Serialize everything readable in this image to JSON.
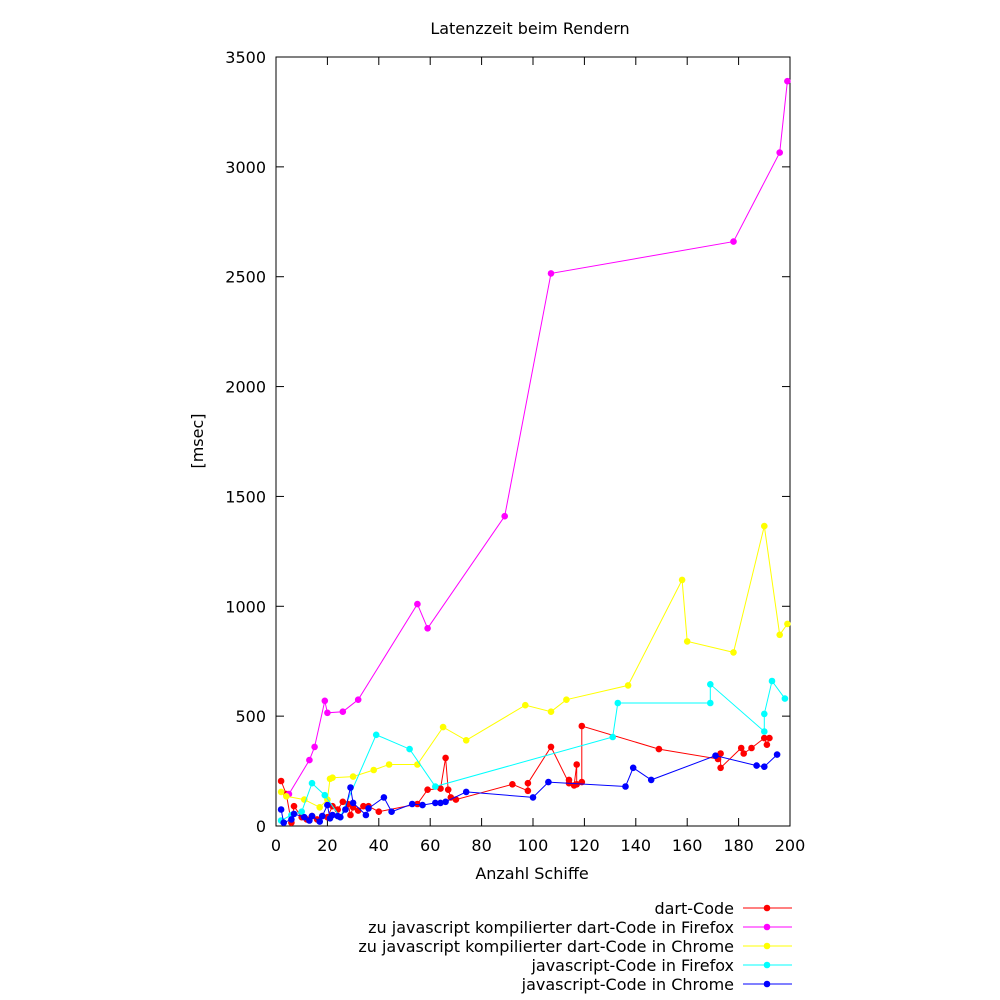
{
  "chart_data": {
    "type": "line",
    "title": "Latenzzeit beim Rendern",
    "xlabel": "Anzahl Schiffe",
    "ylabel": "[msec]",
    "xlim": [
      0,
      200
    ],
    "ylim": [
      0,
      3500
    ],
    "xticks": [
      0,
      20,
      40,
      60,
      80,
      100,
      120,
      140,
      160,
      180,
      200
    ],
    "yticks": [
      0,
      500,
      1000,
      1500,
      2000,
      2500,
      3000,
      3500
    ],
    "grid": false,
    "legend_position": "bottom-right, below plot",
    "series": [
      {
        "name": "dart-Code",
        "color": "#ff0000",
        "points": [
          [
            2,
            205
          ],
          [
            4,
            145
          ],
          [
            6,
            15
          ],
          [
            7,
            90
          ],
          [
            10,
            40
          ],
          [
            12,
            30
          ],
          [
            14,
            45
          ],
          [
            16,
            30
          ],
          [
            18,
            45
          ],
          [
            20,
            40
          ],
          [
            22,
            90
          ],
          [
            24,
            75
          ],
          [
            26,
            110
          ],
          [
            28,
            100
          ],
          [
            29,
            50
          ],
          [
            30,
            85
          ],
          [
            32,
            70
          ],
          [
            34,
            90
          ],
          [
            36,
            90
          ],
          [
            40,
            65
          ],
          [
            55,
            100
          ],
          [
            59,
            165
          ],
          [
            64,
            170
          ],
          [
            66,
            310
          ],
          [
            67,
            165
          ],
          [
            68,
            130
          ],
          [
            70,
            120
          ],
          [
            92,
            190
          ],
          [
            98,
            160
          ],
          [
            98,
            195
          ],
          [
            107,
            360
          ],
          [
            114,
            195
          ],
          [
            114,
            210
          ],
          [
            116,
            185
          ],
          [
            117,
            280
          ],
          [
            117,
            190
          ],
          [
            119,
            200
          ],
          [
            119,
            455
          ],
          [
            149,
            350
          ],
          [
            172,
            305
          ],
          [
            173,
            330
          ],
          [
            173,
            265
          ],
          [
            181,
            355
          ],
          [
            182,
            330
          ],
          [
            185,
            355
          ],
          [
            190,
            400
          ],
          [
            191,
            370
          ],
          [
            192,
            400
          ]
        ]
      },
      {
        "name": "zu javascript kompilierter dart-Code in Firefox",
        "color": "#ff00ff",
        "points": [
          [
            5,
            145
          ],
          [
            13,
            300
          ],
          [
            15,
            360
          ],
          [
            19,
            570
          ],
          [
            20,
            515
          ],
          [
            26,
            520
          ],
          [
            32,
            575
          ],
          [
            55,
            1010
          ],
          [
            59,
            900
          ],
          [
            89,
            1410
          ],
          [
            107,
            2515
          ],
          [
            178,
            2660
          ],
          [
            196,
            3065
          ],
          [
            199,
            3390
          ]
        ]
      },
      {
        "name": "zu javascript kompilierter dart-Code in Chrome",
        "color": "#ffff00",
        "points": [
          [
            2,
            155
          ],
          [
            4,
            135
          ],
          [
            11,
            120
          ],
          [
            17,
            85
          ],
          [
            20,
            120
          ],
          [
            21,
            215
          ],
          [
            22,
            220
          ],
          [
            30,
            225
          ],
          [
            38,
            255
          ],
          [
            44,
            280
          ],
          [
            55,
            280
          ],
          [
            65,
            450
          ],
          [
            74,
            390
          ],
          [
            97,
            550
          ],
          [
            107,
            520
          ],
          [
            113,
            575
          ],
          [
            137,
            640
          ],
          [
            158,
            1120
          ],
          [
            160,
            840
          ],
          [
            178,
            790
          ],
          [
            190,
            1365
          ],
          [
            196,
            870
          ],
          [
            199,
            920
          ]
        ]
      },
      {
        "name": "javascript-Code in Firefox",
        "color": "#00ffff",
        "points": [
          [
            2,
            25
          ],
          [
            6,
            50
          ],
          [
            10,
            65
          ],
          [
            14,
            195
          ],
          [
            19,
            140
          ],
          [
            25,
            40
          ],
          [
            39,
            415
          ],
          [
            52,
            350
          ],
          [
            62,
            180
          ],
          [
            131,
            405
          ],
          [
            133,
            560
          ],
          [
            169,
            560
          ],
          [
            169,
            645
          ],
          [
            190,
            430
          ],
          [
            190,
            510
          ],
          [
            193,
            660
          ],
          [
            198,
            580
          ]
        ]
      },
      {
        "name": "javascript-Code in Chrome",
        "color": "#0000ff",
        "points": [
          [
            2,
            75
          ],
          [
            3,
            15
          ],
          [
            6,
            30
          ],
          [
            7,
            55
          ],
          [
            11,
            40
          ],
          [
            13,
            25
          ],
          [
            14,
            45
          ],
          [
            17,
            20
          ],
          [
            18,
            45
          ],
          [
            20,
            95
          ],
          [
            21,
            35
          ],
          [
            22,
            50
          ],
          [
            24,
            45
          ],
          [
            25,
            40
          ],
          [
            27,
            75
          ],
          [
            29,
            175
          ],
          [
            30,
            105
          ],
          [
            35,
            50
          ],
          [
            36,
            80
          ],
          [
            42,
            130
          ],
          [
            45,
            65
          ],
          [
            53,
            100
          ],
          [
            57,
            95
          ],
          [
            62,
            105
          ],
          [
            64,
            105
          ],
          [
            66,
            110
          ],
          [
            74,
            155
          ],
          [
            100,
            130
          ],
          [
            106,
            200
          ],
          [
            136,
            180
          ],
          [
            139,
            265
          ],
          [
            146,
            210
          ],
          [
            171,
            320
          ],
          [
            187,
            275
          ],
          [
            190,
            270
          ],
          [
            195,
            325
          ]
        ]
      }
    ]
  }
}
